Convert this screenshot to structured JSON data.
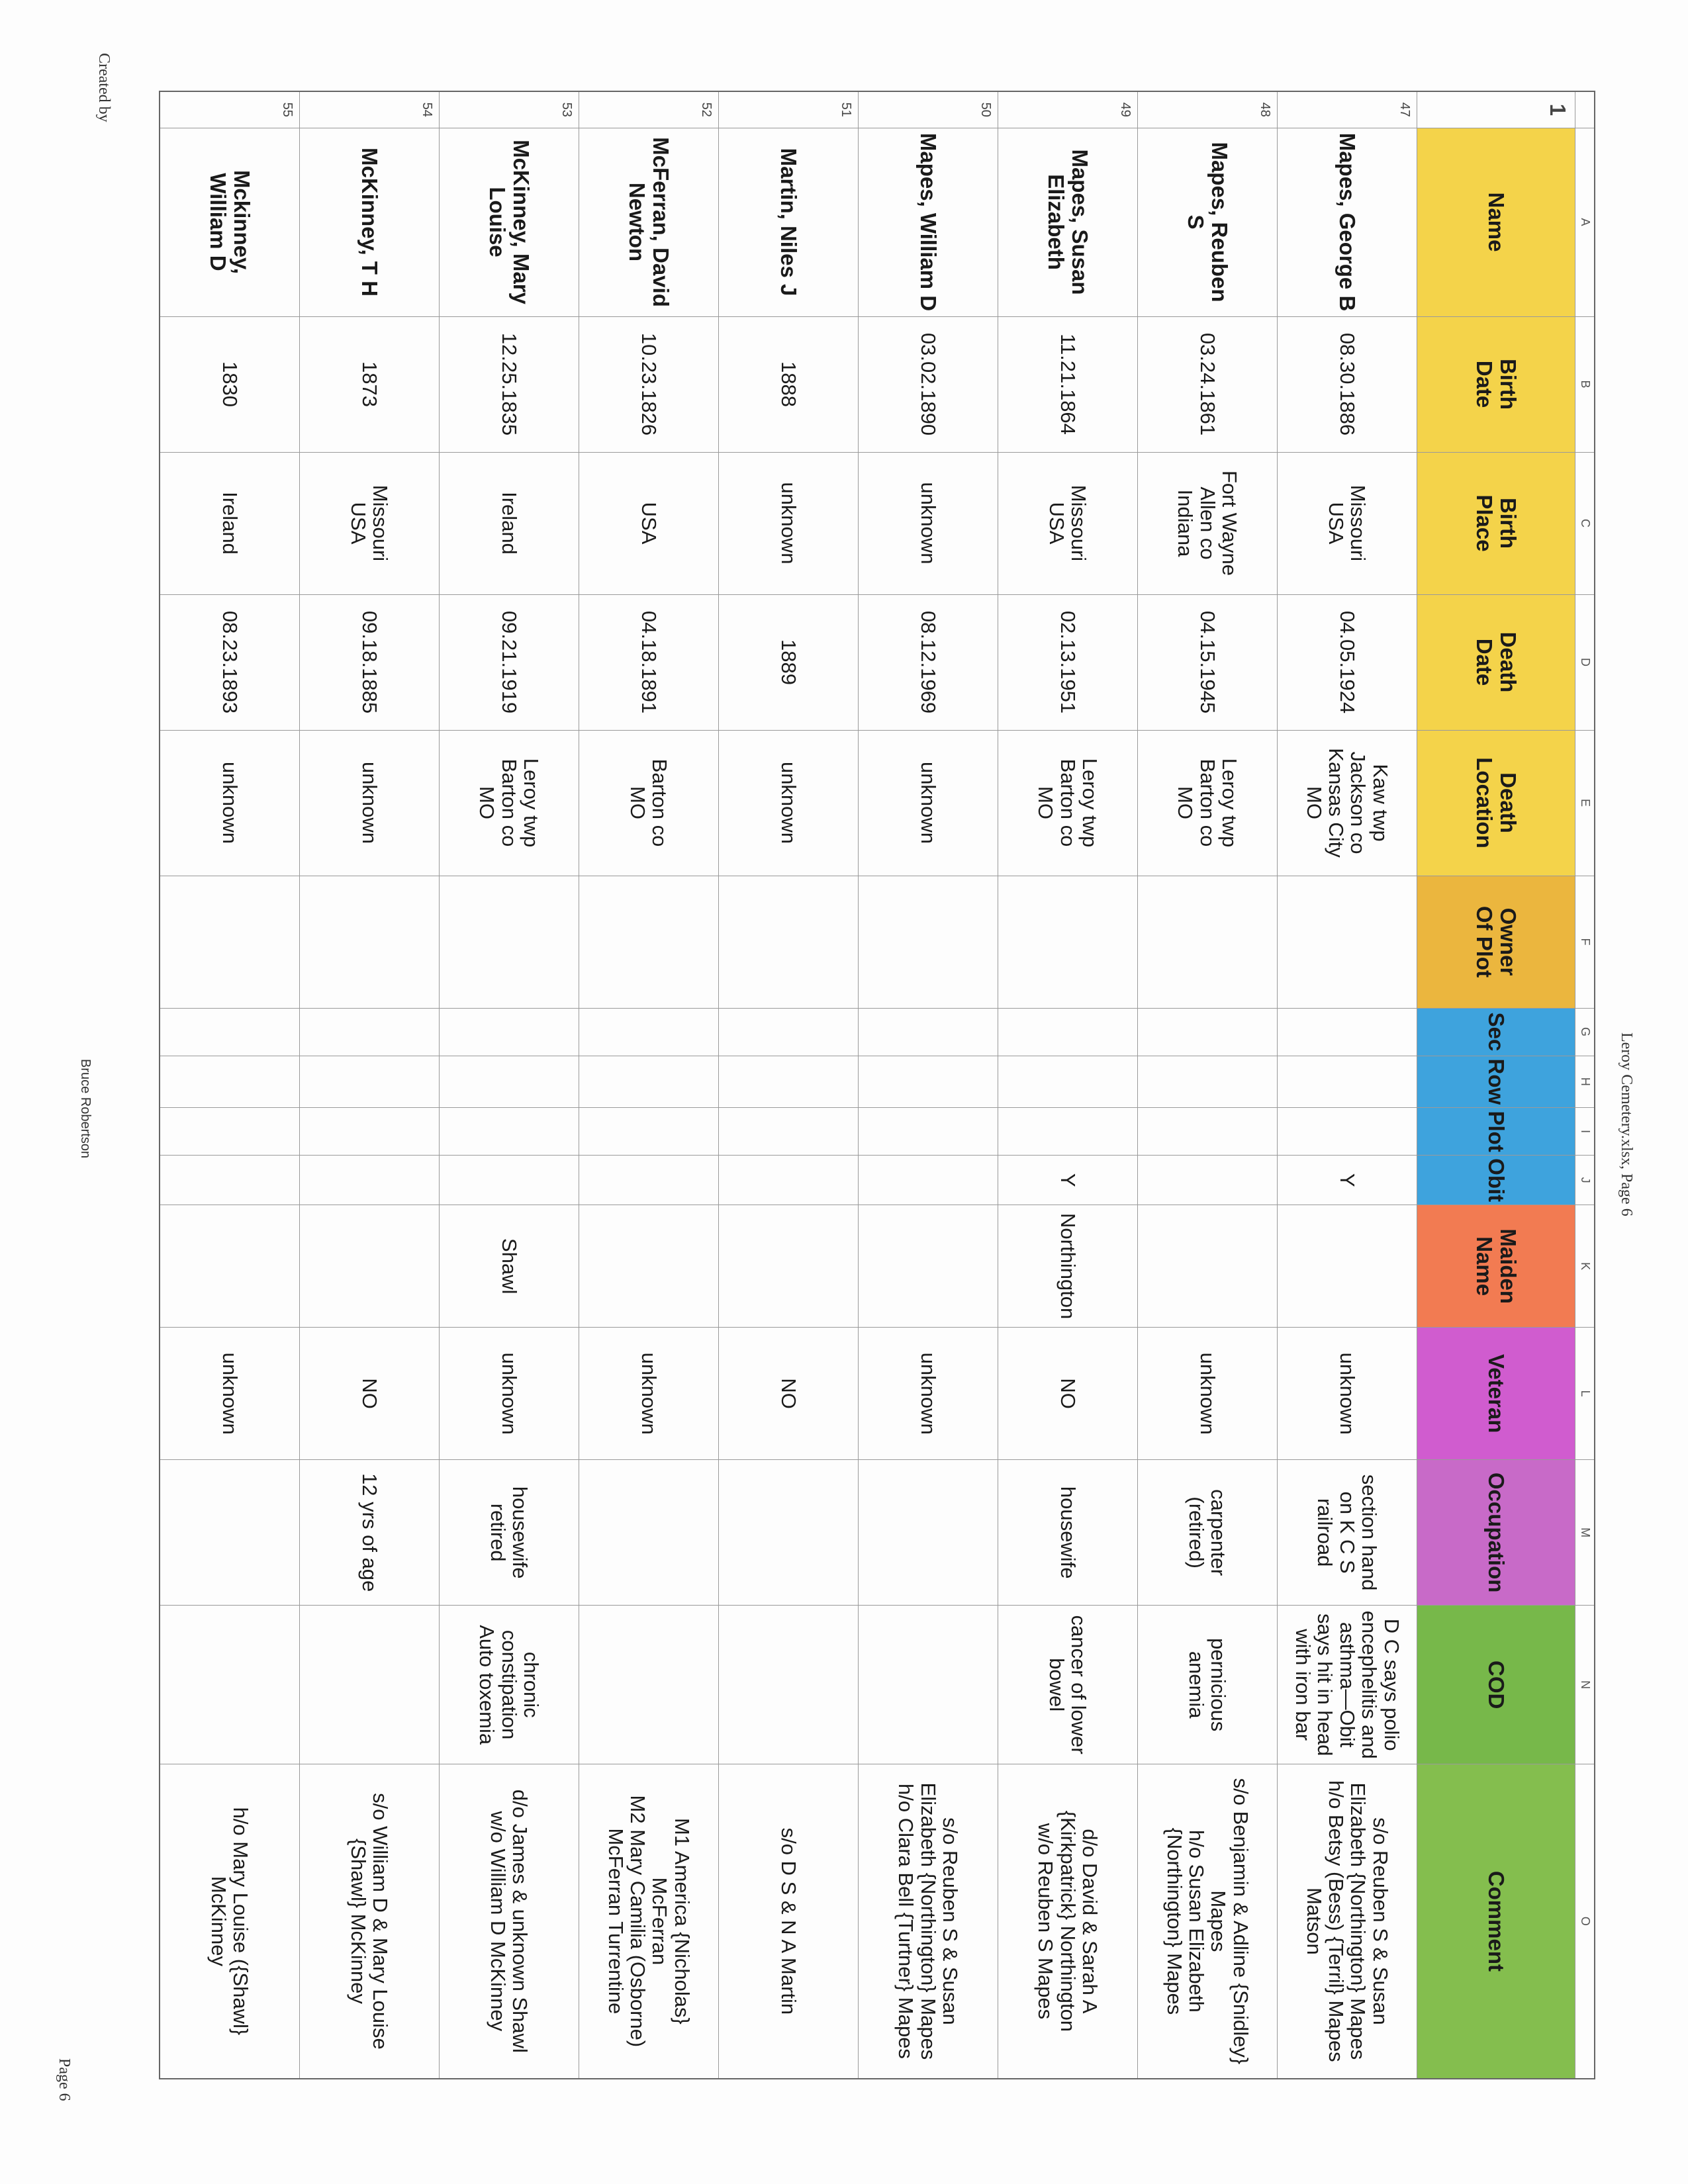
{
  "page": {
    "header": "Leroy Cemetery.xlsx, Page 6",
    "footer_left": "Created by",
    "footer_center": "Bruce Robertson",
    "footer_right": "Page 6"
  },
  "column_letters": [
    "",
    "A",
    "B",
    "C",
    "D",
    "E",
    "F",
    "G",
    "H",
    "I",
    "J",
    "K",
    "L",
    "M",
    "N",
    "O"
  ],
  "header_row_number": "1",
  "headers": [
    {
      "label": "Name",
      "color": "#f4d34a"
    },
    {
      "label": "Birth\nDate",
      "color": "#f4d34a"
    },
    {
      "label": "Birth\nPlace",
      "color": "#f4d34a"
    },
    {
      "label": "Death\nDate",
      "color": "#f4d34a"
    },
    {
      "label": "Death\nLocation",
      "color": "#f4d34a"
    },
    {
      "label": "Owner\nOf Plot",
      "color": "#ebb63e"
    },
    {
      "label": "Sec",
      "color": "#3ea3dd"
    },
    {
      "label": "Row",
      "color": "#3ea3dd"
    },
    {
      "label": "Plot",
      "color": "#3ea3dd"
    },
    {
      "label": "Obit",
      "color": "#3ea3dd"
    },
    {
      "label": "Maiden\nName",
      "color": "#f27b52"
    },
    {
      "label": "Veteran",
      "color": "#d05ccf"
    },
    {
      "label": "Occupation",
      "color": "#c86ac8"
    },
    {
      "label": "COD",
      "color": "#77b84a"
    },
    {
      "label": "Comment",
      "color": "#84be4e"
    }
  ],
  "rows": [
    {
      "num": "47",
      "cells": [
        "Mapes, George B",
        "08.30.1886",
        "Missouri\nUSA",
        "04.05.1924",
        "Kaw twp\nJackson co\nKansas City\nMO",
        "",
        "",
        "",
        "",
        "Y",
        "",
        "unknown",
        "section hand\non K C S\nrailroad",
        "D C says polio\nencephelitis and\nasthma—Obit\nsays hit in head\nwith iron bar",
        "s/o Reuben S & Susan\nElizabeth {Northington} Mapes\nh/o Betsy (Bess) {Terril} Mapes\nMatson"
      ]
    },
    {
      "num": "48",
      "cells": [
        "Mapes, Reuben\nS",
        "03.24.1861",
        "Fort Wayne\nAllen co\nIndiana",
        "04.15.1945",
        "Leroy twp\nBarton co\nMO",
        "",
        "",
        "",
        "",
        "",
        "",
        "unknown",
        "carpenter\n(retired)",
        "pernicious\nanemia",
        "s/o Benjamin & Adline {Snidley}\nMapes\nh/o Susan Elizabeth\n{Northington} Mapes"
      ]
    },
    {
      "num": "49",
      "cells": [
        "Mapes, Susan\nElizabeth",
        "11.21.1864",
        "Missouri\nUSA",
        "02.13.1951",
        "Leroy twp\nBarton co\nMO",
        "",
        "",
        "",
        "",
        "Y",
        "Northington",
        "NO",
        "housewife",
        "cancer of lower\nbowel",
        "d/o David & Sarah A\n{Kirkpatrick} Northington\nw/o Reuben S Mapes"
      ]
    },
    {
      "num": "50",
      "cells": [
        "Mapes, William D",
        "03.02.1890",
        "unknown",
        "08.12.1969",
        "unknown",
        "",
        "",
        "",
        "",
        "",
        "",
        "unknown",
        "",
        "",
        "s/o Reuben S & Susan\nElizabeth {Northington} Mapes\nh/o Clara Bell {Turtner} Mapes"
      ]
    },
    {
      "num": "51",
      "cells": [
        "Martin, Niles J",
        "1888",
        "unknown",
        "1889",
        "unknown",
        "",
        "",
        "",
        "",
        "",
        "",
        "NO",
        "",
        "",
        "s/o D S & N A Martin"
      ]
    },
    {
      "num": "52",
      "cells": [
        "McFerran, David\nNewton",
        "10.23.1826",
        "USA",
        "04.18.1891",
        "Barton co\nMO",
        "",
        "",
        "",
        "",
        "",
        "",
        "unknown",
        "",
        "",
        "M1 America {Nicholas}\nMcFerran\nM2 Mary Camilia (Osborne)\nMcFerran Turrentine"
      ]
    },
    {
      "num": "53",
      "cells": [
        "McKinney, Mary\nLouise",
        "12.25.1835",
        "Ireland",
        "09.21.1919",
        "Leroy twp\nBarton co\nMO",
        "",
        "",
        "",
        "",
        "",
        "Shawl",
        "unknown",
        "housewife\nretired",
        "chronic\nconstipation\nAuto toxemia",
        "d/o James & unknown Shawl\nw/o William D McKinney"
      ]
    },
    {
      "num": "54",
      "cells": [
        "McKinney, T H",
        "1873",
        "Missouri\nUSA",
        "09.18.1885",
        "unknown",
        "",
        "",
        "",
        "",
        "",
        "",
        "NO",
        "12 yrs of age",
        "",
        "s/o William D & Mary Louise\n{Shawl} McKinney"
      ]
    },
    {
      "num": "55",
      "cells": [
        "Mckinney,\nWilliam D",
        "1830",
        "Ireland",
        "08.23.1893",
        "unknown",
        "",
        "",
        "",
        "",
        "",
        "",
        "unknown",
        "",
        "",
        "h/o Mary Louise ({Shawl}\nMcKinney"
      ]
    }
  ]
}
